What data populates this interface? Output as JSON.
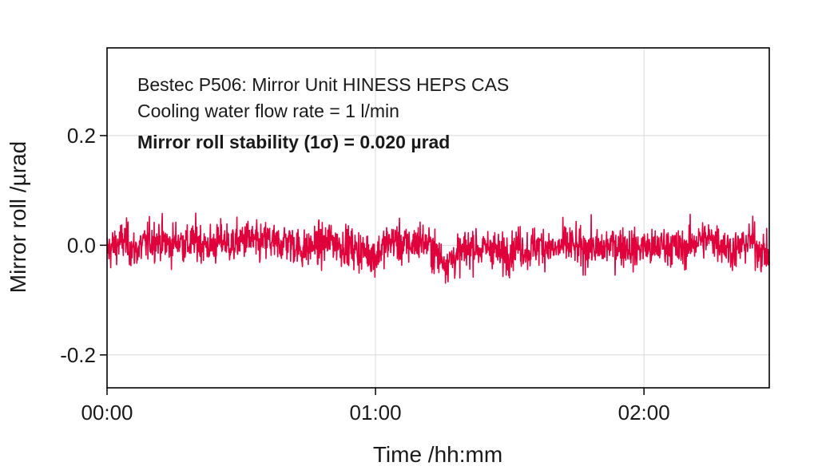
{
  "chart_data": {
    "type": "line",
    "xlabel": "Time /hh:mm",
    "ylabel": "Mirror roll /µrad",
    "xlim_minutes": [
      0,
      148
    ],
    "ylim": [
      -0.26,
      0.36
    ],
    "x_ticks": [
      {
        "label": "00:00",
        "minutes": 0
      },
      {
        "label": "01:00",
        "minutes": 60
      },
      {
        "label": "02:00",
        "minutes": 120
      }
    ],
    "y_ticks": [
      {
        "label": "0.2",
        "value": 0.2
      },
      {
        "label": "0.0",
        "value": 0.0
      },
      {
        "label": "-0.2",
        "value": -0.2
      }
    ],
    "grid": true,
    "annotations": [
      {
        "text": "Bestec P506: Mirror Unit HINESS HEPS CAS",
        "bold": false
      },
      {
        "text": "Cooling water flow rate = 1 l/min",
        "bold": false
      },
      {
        "text": "Mirror roll stability (1σ) = 0.020 µrad",
        "bold": true
      }
    ],
    "series": [
      {
        "color": "#e0003c",
        "x_minutes": [
          0,
          2,
          4,
          6,
          8,
          10,
          12,
          14,
          16,
          18,
          20,
          22,
          24,
          26,
          28,
          30,
          32,
          34,
          36,
          38,
          40,
          42,
          44,
          46,
          48,
          50,
          52,
          54,
          56,
          58,
          60,
          62,
          64,
          66,
          68,
          70,
          72,
          74,
          76,
          78,
          80,
          82,
          84,
          86,
          88,
          90,
          92,
          94,
          96,
          98,
          100,
          102,
          104,
          106,
          108,
          110,
          112,
          114,
          116,
          118,
          120,
          122,
          124,
          126,
          128,
          130,
          132,
          134,
          136,
          138,
          140,
          142,
          144,
          146,
          148
        ],
        "y": [
          -0.01,
          0.0,
          0.01,
          -0.01,
          0.0,
          0.01,
          0.01,
          0.0,
          0.01,
          0.0,
          0.01,
          0.0,
          0.0,
          0.01,
          0.0,
          0.01,
          0.01,
          0.0,
          0.01,
          0.0,
          0.01,
          0.0,
          -0.01,
          0.0,
          0.0,
          0.01,
          0.0,
          0.0,
          -0.01,
          -0.01,
          -0.02,
          0.0,
          0.01,
          0.0,
          0.0,
          0.01,
          0.0,
          -0.02,
          -0.03,
          -0.02,
          -0.01,
          0.0,
          -0.01,
          0.0,
          -0.02,
          -0.01,
          0.0,
          -0.01,
          0.0,
          0.0,
          -0.01,
          0.0,
          0.0,
          -0.01,
          0.0,
          -0.01,
          0.0,
          0.0,
          0.0,
          -0.01,
          0.0,
          -0.01,
          0.0,
          0.0,
          -0.01,
          0.0,
          0.01,
          0.01,
          0.01,
          0.0,
          -0.01,
          0.0,
          0.01,
          -0.01,
          -0.02
        ],
        "stddev": 0.02
      }
    ]
  }
}
